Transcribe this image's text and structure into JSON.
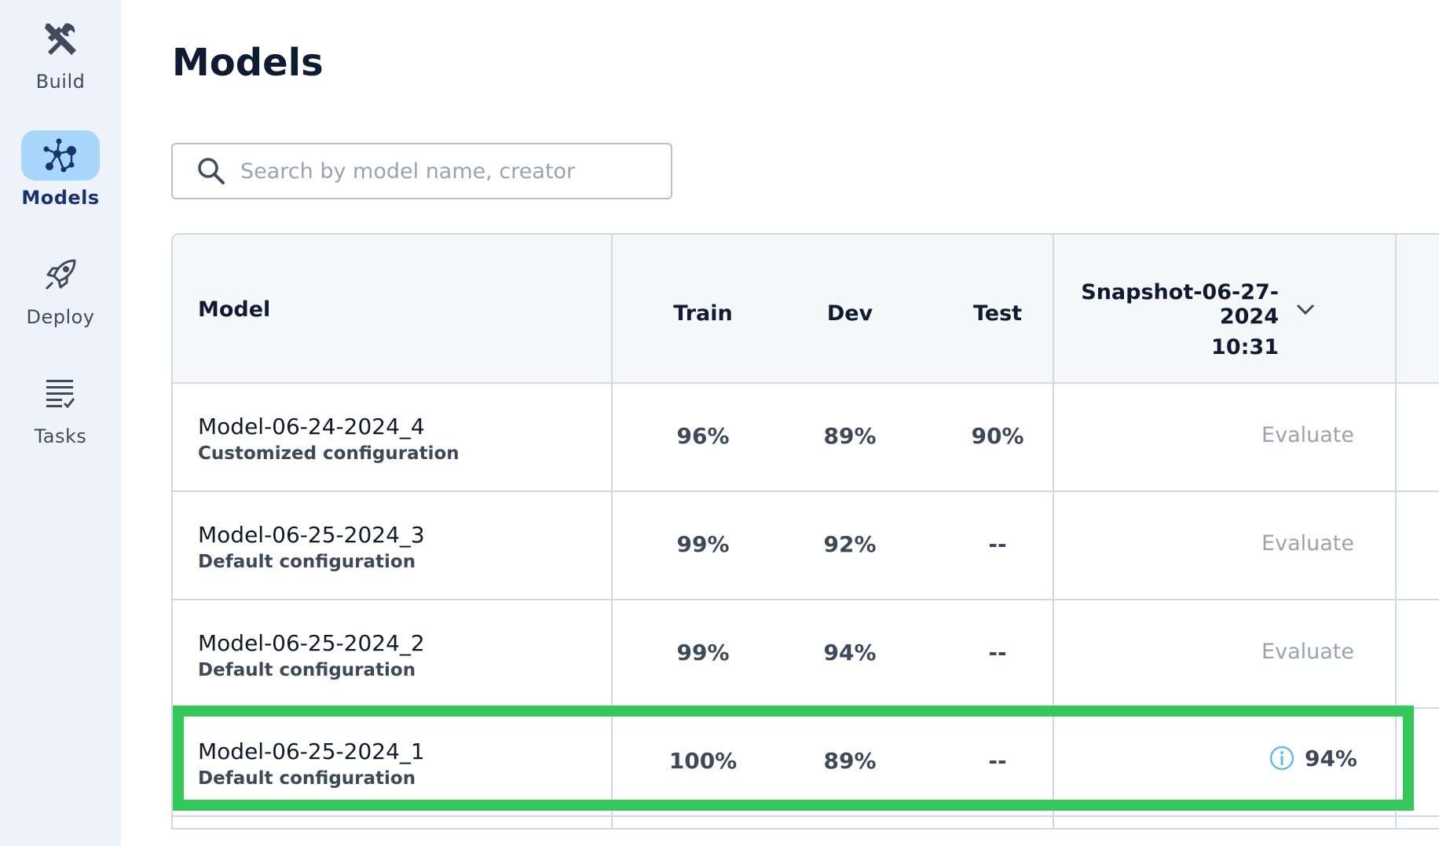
{
  "sidebar": {
    "items": [
      {
        "label": "Build",
        "icon": "build-tools-icon",
        "active": false
      },
      {
        "label": "Models",
        "icon": "models-network-icon",
        "active": true
      },
      {
        "label": "Deploy",
        "icon": "rocket-icon",
        "active": false
      },
      {
        "label": "Tasks",
        "icon": "tasks-list-icon",
        "active": false
      }
    ]
  },
  "page": {
    "title": "Models"
  },
  "search": {
    "placeholder": "Search by model name, creator",
    "value": ""
  },
  "table": {
    "headers": {
      "model": "Model",
      "train": "Train",
      "dev": "Dev",
      "test": "Test",
      "snapshot_line1": "Snapshot-06-27-2024",
      "snapshot_line2": "10:31"
    },
    "rows": [
      {
        "name": "Model-06-24-2024_4",
        "config": "Customized configuration",
        "train": "96%",
        "dev": "89%",
        "test": "90%",
        "snapshot": "Evaluate"
      },
      {
        "name": "Model-06-25-2024_3",
        "config": "Default configuration",
        "train": "99%",
        "dev": "92%",
        "test": "--",
        "snapshot": "Evaluate"
      },
      {
        "name": "Model-06-25-2024_2",
        "config": "Default configuration",
        "train": "99%",
        "dev": "94%",
        "test": "--",
        "snapshot": "Evaluate"
      },
      {
        "name": "Model-06-25-2024_1",
        "config": "Default configuration",
        "train": "100%",
        "dev": "89%",
        "test": "--",
        "snapshot": "94%"
      }
    ]
  },
  "colors": {
    "highlight": "#34c759",
    "active_nav_bg": "#a7d8fb",
    "sidebar_bg": "#eef3fb",
    "info_icon": "#6ab8ee"
  }
}
